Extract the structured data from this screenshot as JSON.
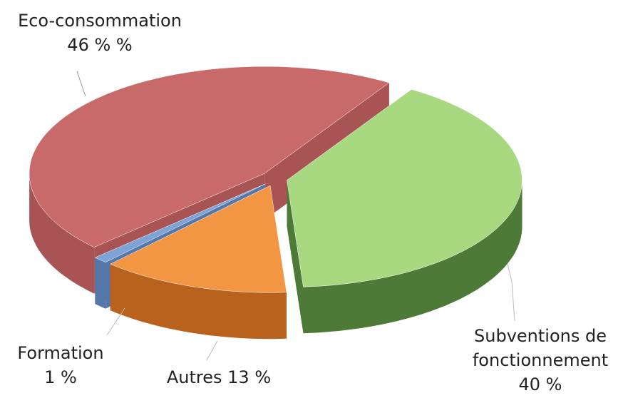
{
  "chart_data": {
    "type": "pie3d",
    "categories": [
      "Subventions de fonctionnement",
      "Autres",
      "Formation",
      "Eco-consommation"
    ],
    "values": [
      40,
      13,
      1,
      46
    ],
    "value_labels": [
      "40 %",
      "13 %",
      "1 %",
      "46 % %"
    ],
    "colors": [
      "#a8d880",
      "#f29644",
      "#7ea4d6",
      "#c96a6a"
    ],
    "side_colors": [
      "#4e7a38",
      "#b8621e",
      "#5577aa",
      "#a85454"
    ]
  }
}
